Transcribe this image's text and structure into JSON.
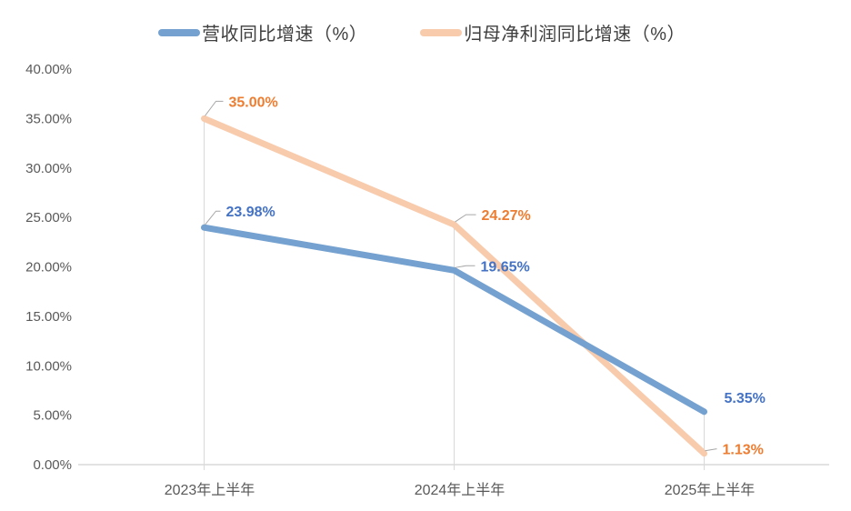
{
  "chart_data": {
    "type": "line",
    "title": "",
    "categories": [
      "2023年上半年",
      "2024年上半年",
      "2025年上半年"
    ],
    "series": [
      {
        "name": "营收同比增速（%）",
        "values": [
          23.98,
          19.65,
          5.35
        ],
        "color": "#74A1CF",
        "label_color": "#4472C4",
        "label_hints": [
          {
            "dx": 24,
            "dy": -18,
            "leader": true
          },
          {
            "dx": 29,
            "dy": -5,
            "leader": true
          },
          {
            "dx": 22,
            "dy": -16,
            "leader": false
          }
        ]
      },
      {
        "name": "归母净利润同比增速（%）",
        "values": [
          35.0,
          24.27,
          1.13
        ],
        "color": "#F8CBAD",
        "label_color": "#ED7D31",
        "label_hints": [
          {
            "dx": 27,
            "dy": -19,
            "leader": true
          },
          {
            "dx": 30,
            "dy": -11,
            "leader": true
          },
          {
            "dx": 20,
            "dy": -5,
            "leader": true
          }
        ]
      }
    ],
    "ylim": [
      0,
      40
    ],
    "ytick_step": 5,
    "ytick_labels": [
      "0.00%",
      "5.00%",
      "10.00%",
      "15.00%",
      "20.00%",
      "25.00%",
      "30.00%",
      "35.00%",
      "40.00%"
    ],
    "data_labels": [
      "23.98%",
      "19.65%",
      "5.35%",
      "35.00%",
      "24.27%",
      "1.13%"
    ],
    "legend_position": "top",
    "grid": "category-drop-lines",
    "axis_color": "#D9D9D9",
    "drop_line_color": "#D9D9D9",
    "leader_line_color": "#A6A6A6",
    "tick_label_color": "#595959",
    "background_color": "#FFFFFF"
  }
}
